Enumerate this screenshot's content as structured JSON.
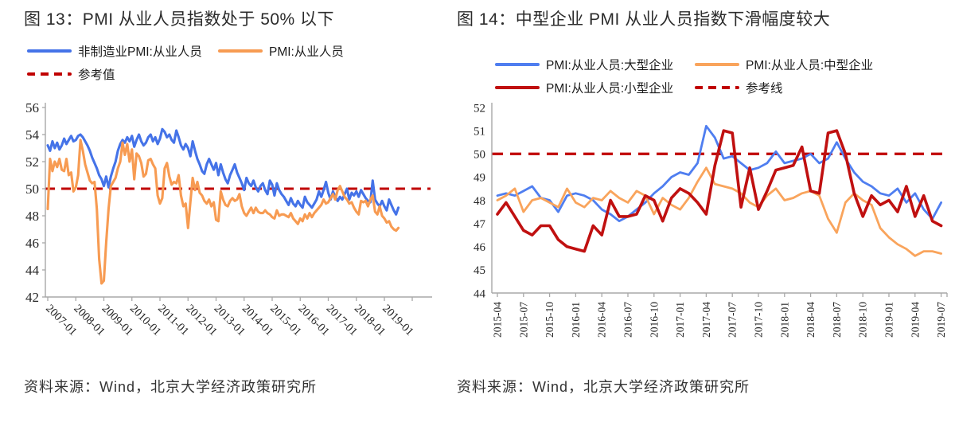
{
  "chart_data": [
    {
      "id": "fig13",
      "type": "line",
      "title": "图 13：PMI 从业人员指数处于 50% 以下",
      "source": "资料来源：Wind，北京大学经济政策研究所",
      "x_range": [
        "2007-01",
        "2019-07"
      ],
      "x_freq": "monthly",
      "x_tick_labels": [
        "2007-01",
        "2008-01",
        "2009-01",
        "2010-01",
        "2011-01",
        "2012-01",
        "2013-01",
        "2014-01",
        "2015-01",
        "2016-01",
        "2017-01",
        "2018-01",
        "2019-01"
      ],
      "ylim": [
        42,
        56
      ],
      "y_ticks": [
        42,
        44,
        46,
        48,
        50,
        52,
        54,
        56
      ],
      "grid": "off",
      "legend_position": "top-left",
      "reference_line": {
        "label": "参考值",
        "value": 50,
        "color": "#c00000",
        "style": "dashed"
      },
      "legend_rows": [
        [
          "非制造业PMI:从业人员",
          "PMI:从业人员"
        ],
        [
          "参考值"
        ]
      ],
      "series": [
        {
          "name": "非制造业PMI:从业人员",
          "color": "#4573e8",
          "values": [
            53.2,
            52.8,
            53.5,
            53.0,
            53.4,
            52.9,
            53.2,
            53.7,
            53.3,
            53.6,
            53.9,
            53.5,
            53.6,
            53.9,
            54.0,
            53.8,
            53.5,
            53.2,
            52.8,
            52.3,
            51.9,
            51.5,
            51.0,
            50.7,
            50.2,
            50.9,
            50.1,
            50.9,
            51.5,
            52.0,
            52.8,
            53.3,
            53.6,
            53.4,
            53.8,
            53.5,
            53.9,
            53.1,
            53.6,
            54.0,
            53.5,
            53.2,
            53.4,
            53.8,
            54.0,
            53.5,
            53.8,
            53.3,
            53.7,
            54.4,
            54.2,
            53.8,
            54.0,
            53.6,
            53.4,
            54.3,
            53.8,
            53.2,
            52.9,
            53.3,
            53.0,
            52.4,
            53.5,
            52.8,
            52.2,
            51.8,
            51.3,
            51.1,
            51.8,
            52.2,
            51.8,
            51.4,
            51.9,
            51.0,
            51.8,
            51.2,
            50.7,
            50.4,
            51.0,
            51.4,
            51.8,
            51.2,
            50.8,
            50.4,
            49.9,
            50.8,
            50.4,
            50.2,
            50.6,
            50.1,
            49.8,
            50.2,
            50.4,
            49.9,
            49.6,
            50.6,
            50.3,
            49.5,
            50.4,
            49.9,
            49.6,
            49.4,
            49.1,
            48.8,
            49.3,
            48.9,
            48.7,
            49.1,
            48.8,
            48.6,
            49.4,
            49.0,
            48.8,
            48.6,
            48.9,
            49.2,
            49.8,
            49.4,
            49.9,
            50.5,
            49.7,
            49.2,
            49.8,
            49.4,
            49.1,
            49.4,
            49.2,
            49.6,
            50.0,
            49.2,
            49.7,
            49.5,
            49.8,
            49.4,
            49.9,
            49.6,
            49.3,
            49.1,
            49.0,
            50.6,
            49.2,
            48.9,
            48.7,
            49.1,
            48.7,
            48.4,
            49.2,
            48.8,
            48.4,
            48.1,
            48.6
          ]
        },
        {
          "name": "PMI:从业人员",
          "color": "#f79b52",
          "values": [
            48.5,
            52.2,
            51.3,
            52.0,
            51.6,
            52.2,
            51.4,
            51.3,
            52.2,
            51.0,
            51.2,
            49.8,
            50.1,
            51.0,
            53.6,
            52.8,
            51.8,
            51.2,
            50.6,
            50.4,
            50.5,
            48.5,
            44.8,
            43.0,
            43.2,
            46.0,
            48.5,
            50.2,
            50.5,
            50.8,
            51.5,
            52.0,
            53.4,
            52.5,
            53.3,
            52.0,
            52.9,
            50.7,
            52.6,
            52.4,
            51.9,
            50.9,
            51.1,
            52.1,
            52.2,
            51.8,
            51.5,
            49.5,
            48.9,
            49.3,
            51.5,
            51.9,
            50.9,
            50.3,
            50.5,
            50.4,
            51.0,
            49.5,
            48.7,
            48.9,
            47.1,
            49.0,
            50.8,
            49.9,
            50.5,
            49.7,
            49.5,
            49.1,
            48.9,
            49.2,
            48.7,
            49.0,
            47.7,
            47.6,
            49.8,
            49.2,
            48.8,
            48.7,
            49.1,
            49.3,
            49.1,
            49.2,
            49.6,
            48.7,
            48.2,
            48.0,
            48.3,
            48.6,
            48.2,
            48.6,
            48.3,
            48.2,
            48.2,
            48.4,
            48.2,
            48.1,
            47.9,
            47.8,
            48.4,
            48.0,
            48.1,
            48.1,
            48.0,
            47.9,
            48.2,
            47.8,
            47.6,
            47.4,
            47.8,
            47.6,
            48.1,
            47.8,
            48.2,
            47.9,
            48.2,
            48.4,
            48.6,
            48.8,
            49.2,
            48.9,
            49.0,
            49.3,
            49.6,
            49.2,
            49.9,
            50.2,
            49.8,
            49.4,
            49.2,
            48.9,
            49.0,
            48.6,
            48.3,
            48.1,
            49.1,
            49.0,
            49.1,
            48.7,
            49.2,
            49.5,
            48.3,
            48.1,
            48.7,
            48.0,
            47.8,
            47.5,
            47.6,
            47.2,
            47.0,
            46.9,
            47.1
          ]
        }
      ]
    },
    {
      "id": "fig14",
      "type": "line",
      "title": "图 14：中型企业 PMI 从业人员指数下滑幅度较大",
      "source": "资料来源：Wind，北京大学经济政策研究所",
      "x_range": [
        "2015-04",
        "2019-07"
      ],
      "x_freq": "monthly",
      "x_tick_labels": [
        "2015-04",
        "2015-07",
        "2015-10",
        "2016-01",
        "2016-04",
        "2016-07",
        "2016-10",
        "2017-01",
        "2017-04",
        "2017-07",
        "2017-10",
        "2018-01",
        "2018-04",
        "2018-07",
        "2018-10",
        "2019-01",
        "2019-04",
        "2019-07"
      ],
      "ylim": [
        44,
        52
      ],
      "y_ticks": [
        44,
        45,
        46,
        47,
        48,
        49,
        50,
        51,
        52
      ],
      "grid": "off",
      "legend_position": "top-center",
      "reference_line": {
        "label": "参考线",
        "value": 50,
        "color": "#c00000",
        "style": "dashed"
      },
      "legend_rows": [
        [
          "PMI:从业人员:大型企业",
          "PMI:从业人员:中型企业"
        ],
        [
          "PMI:从业人员:小型企业",
          "参考线"
        ]
      ],
      "series": [
        {
          "name": "PMI:从业人员:大型企业",
          "color": "#4f7ef0",
          "values": [
            48.2,
            48.3,
            48.2,
            48.4,
            48.6,
            48.1,
            48.0,
            47.5,
            48.2,
            48.3,
            48.2,
            48.0,
            47.6,
            47.4,
            47.1,
            47.3,
            47.6,
            47.9,
            48.3,
            48.6,
            49.0,
            49.2,
            49.1,
            49.6,
            51.2,
            50.7,
            49.8,
            49.9,
            49.6,
            49.3,
            49.4,
            49.6,
            50.1,
            49.6,
            49.7,
            49.8,
            50.0,
            49.6,
            49.8,
            50.5,
            49.8,
            49.2,
            48.8,
            48.6,
            48.3,
            48.2,
            48.5,
            47.9,
            48.3,
            47.6,
            47.2,
            47.9
          ]
        },
        {
          "name": "PMI:从业人员:中型企业",
          "color": "#f9a45c",
          "values": [
            48.0,
            48.2,
            48.5,
            47.5,
            48.0,
            48.1,
            47.9,
            47.7,
            48.5,
            47.9,
            47.7,
            48.1,
            48.0,
            48.4,
            48.1,
            47.9,
            48.4,
            48.2,
            47.4,
            48.1,
            47.8,
            47.6,
            48.1,
            48.8,
            49.4,
            48.7,
            48.6,
            48.5,
            48.3,
            47.9,
            47.7,
            48.2,
            48.5,
            48.0,
            48.1,
            48.3,
            48.4,
            48.2,
            47.2,
            46.6,
            47.9,
            48.3,
            48.0,
            47.8,
            46.8,
            46.4,
            46.1,
            45.9,
            45.6,
            45.8,
            45.8,
            45.7
          ]
        },
        {
          "name": "PMI:从业人员:小型企业",
          "color": "#c01010",
          "values": [
            47.4,
            47.9,
            47.3,
            46.7,
            46.5,
            46.9,
            46.9,
            46.3,
            46.0,
            45.9,
            45.8,
            46.9,
            46.5,
            48.0,
            47.3,
            47.3,
            47.4,
            48.2,
            48.0,
            47.1,
            48.1,
            48.5,
            48.3,
            47.9,
            47.4,
            49.5,
            51.0,
            50.9,
            47.7,
            49.4,
            47.6,
            48.4,
            49.3,
            49.4,
            49.5,
            50.3,
            48.4,
            48.3,
            50.9,
            51.0,
            50.0,
            48.3,
            47.3,
            48.2,
            47.8,
            48.0,
            47.5,
            48.6,
            47.3,
            48.2,
            47.1,
            46.9
          ]
        }
      ]
    }
  ]
}
